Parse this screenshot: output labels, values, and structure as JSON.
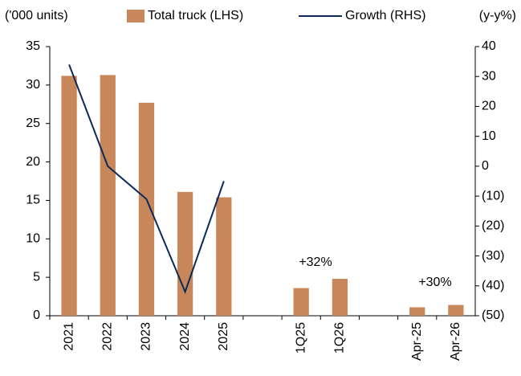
{
  "chart_data": {
    "type": "bar",
    "y_label": "('000 units)",
    "y2_label": "(y-y%)",
    "categories": [
      "2021",
      "2022",
      "2023",
      "2024",
      "2025",
      null,
      "1Q25",
      "1Q26",
      null,
      "Apr-25",
      "Apr-26"
    ],
    "series": [
      {
        "name": "Total truck (LHS)",
        "type": "bar",
        "color": "#c8875a",
        "values": [
          31.2,
          31.3,
          27.7,
          16.1,
          15.4,
          null,
          3.6,
          4.8,
          null,
          1.1,
          1.4
        ]
      },
      {
        "name": "Growth (RHS)",
        "type": "line",
        "color": "#0b2a5b",
        "axis": "y2",
        "values": [
          34,
          0,
          -11,
          -42,
          -5,
          null,
          null,
          null,
          null,
          null,
          null
        ]
      }
    ],
    "ylim": [
      0,
      35
    ],
    "yticks": [
      0,
      5,
      10,
      15,
      20,
      25,
      30,
      35
    ],
    "y2lim": [
      -50,
      40
    ],
    "y2ticks": [
      {
        "value": -50,
        "label": "(50)"
      },
      {
        "value": -40,
        "label": "(40)"
      },
      {
        "value": -30,
        "label": "(30)"
      },
      {
        "value": -20,
        "label": "(20)"
      },
      {
        "value": -10,
        "label": "(10)"
      },
      0,
      10,
      20,
      30,
      40
    ],
    "annotations": [
      "+32%",
      "+30%"
    ]
  }
}
